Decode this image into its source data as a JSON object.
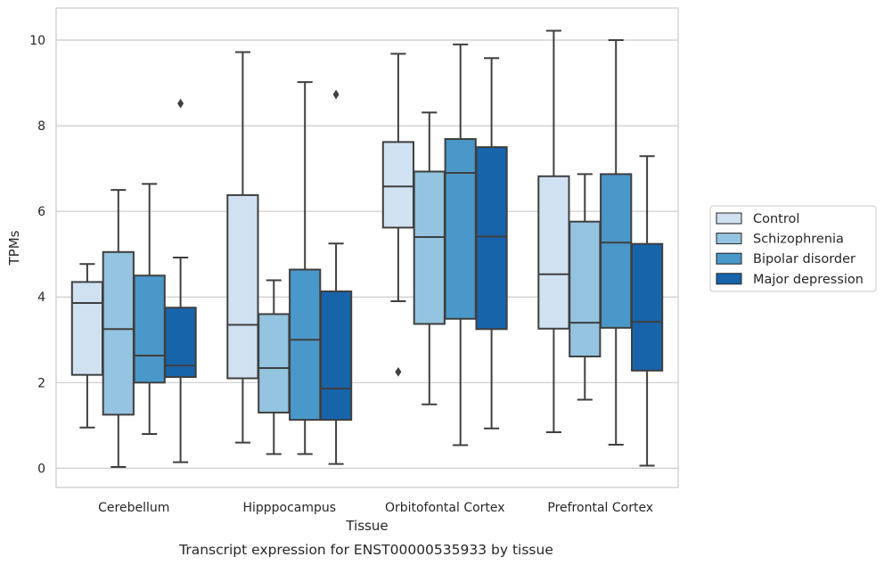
{
  "chart_data": {
    "type": "box",
    "caption": "Transcript expression for ENST00000535933 by tissue",
    "xlabel": "Tissue",
    "ylabel": "TPMs",
    "ylim": [
      -0.45,
      10.75
    ],
    "yticks": [
      0,
      2,
      4,
      6,
      8,
      10
    ],
    "grid": "horizontal",
    "legend_position": "right",
    "categories": [
      "Cerebellum",
      "Hipppocampus",
      "Orbitofontal Cortex",
      "Prefrontal Cortex"
    ],
    "series": [
      {
        "name": "Control",
        "color": "#d0e1f2",
        "boxes": [
          {
            "whisker_low": 0.95,
            "q1": 2.18,
            "median": 3.86,
            "q3": 4.35,
            "whisker_high": 4.77,
            "outliers": []
          },
          {
            "whisker_low": 0.6,
            "q1": 2.1,
            "median": 3.35,
            "q3": 6.38,
            "whisker_high": 9.72,
            "outliers": []
          },
          {
            "whisker_low": 3.9,
            "q1": 5.62,
            "median": 6.58,
            "q3": 7.62,
            "whisker_high": 9.68,
            "outliers": [
              2.25
            ]
          },
          {
            "whisker_low": 0.84,
            "q1": 3.26,
            "median": 4.53,
            "q3": 6.82,
            "whisker_high": 10.22,
            "outliers": []
          }
        ]
      },
      {
        "name": "Schizophrenia",
        "color": "#94c4df",
        "boxes": [
          {
            "whisker_low": 0.03,
            "q1": 1.25,
            "median": 3.25,
            "q3": 5.05,
            "whisker_high": 6.5,
            "outliers": []
          },
          {
            "whisker_low": 0.33,
            "q1": 1.3,
            "median": 2.34,
            "q3": 3.6,
            "whisker_high": 4.39,
            "outliers": []
          },
          {
            "whisker_low": 1.49,
            "q1": 3.37,
            "median": 5.4,
            "q3": 6.93,
            "whisker_high": 8.31,
            "outliers": []
          },
          {
            "whisker_low": 1.6,
            "q1": 2.61,
            "median": 3.4,
            "q3": 5.76,
            "whisker_high": 6.87,
            "outliers": []
          }
        ]
      },
      {
        "name": "Bipolar disorder",
        "color": "#4a98c9",
        "boxes": [
          {
            "whisker_low": 0.8,
            "q1": 2.0,
            "median": 2.63,
            "q3": 4.5,
            "whisker_high": 6.64,
            "outliers": []
          },
          {
            "whisker_low": 0.33,
            "q1": 1.13,
            "median": 3.0,
            "q3": 4.64,
            "whisker_high": 9.02,
            "outliers": []
          },
          {
            "whisker_low": 0.54,
            "q1": 3.49,
            "median": 6.9,
            "q3": 7.69,
            "whisker_high": 9.9,
            "outliers": []
          },
          {
            "whisker_low": 0.55,
            "q1": 3.28,
            "median": 5.27,
            "q3": 6.87,
            "whisker_high": 10.0,
            "outliers": []
          }
        ]
      },
      {
        "name": "Major depression",
        "color": "#1764ab",
        "boxes": [
          {
            "whisker_low": 0.14,
            "q1": 2.13,
            "median": 2.4,
            "q3": 3.75,
            "whisker_high": 4.92,
            "outliers": [
              8.52
            ]
          },
          {
            "whisker_low": 0.1,
            "q1": 1.13,
            "median": 1.86,
            "q3": 4.13,
            "whisker_high": 5.25,
            "outliers": [
              8.73
            ]
          },
          {
            "whisker_low": 0.93,
            "q1": 3.25,
            "median": 5.41,
            "q3": 7.5,
            "whisker_high": 9.58,
            "outliers": []
          },
          {
            "whisker_low": 0.06,
            "q1": 2.28,
            "median": 3.42,
            "q3": 5.24,
            "whisker_high": 7.29,
            "outliers": []
          }
        ]
      }
    ]
  }
}
